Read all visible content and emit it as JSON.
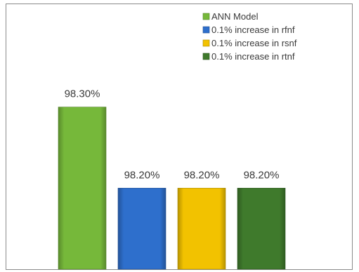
{
  "chart_data": {
    "type": "bar",
    "categories": [
      "ANN Model",
      "0.1% increase in rfnf",
      "0.1% increase in rsnf",
      "0.1% increase in rtnf"
    ],
    "values": [
      98.3,
      98.2,
      98.2,
      98.2
    ],
    "data_labels": [
      "98.30%",
      "98.20%",
      "98.20%",
      "98.20%"
    ],
    "colors": [
      "#76b83a",
      "#2e6fcc",
      "#f2c200",
      "#3f7a2c"
    ],
    "legend": {
      "placement": "top-right",
      "entries": [
        "ANN Model",
        "0.1% increase in rfnf",
        "0.1% increase in rsnf",
        "0.1% increase in rtnf"
      ]
    },
    "axis_visible": false,
    "grid": false,
    "ylim": [
      98.1,
      98.33
    ]
  }
}
